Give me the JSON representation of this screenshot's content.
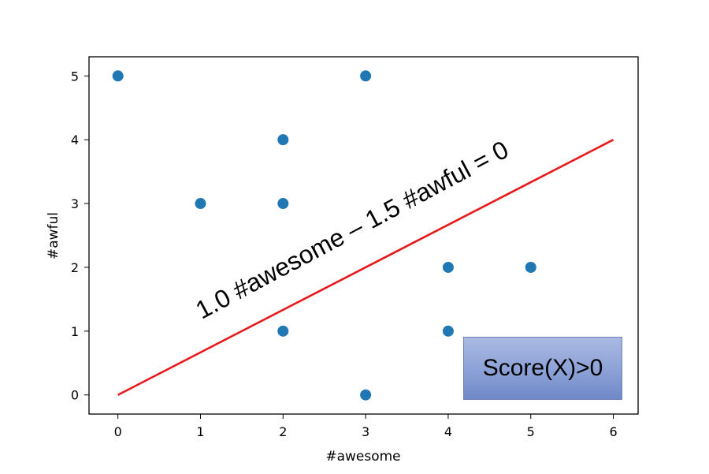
{
  "chart_data": {
    "type": "scatter",
    "xlabel": "#awesome",
    "ylabel": "#awful",
    "xlim": [
      -0.35,
      6.3
    ],
    "ylim": [
      -0.3,
      5.3
    ],
    "xticks": [
      0,
      1,
      2,
      3,
      4,
      5,
      6
    ],
    "yticks": [
      0,
      1,
      2,
      3,
      4,
      5
    ],
    "grid": false,
    "series": [
      {
        "color": "#1f77b4",
        "points": [
          {
            "x": 0,
            "y": 5
          },
          {
            "x": 3,
            "y": 5
          },
          {
            "x": 2,
            "y": 4
          },
          {
            "x": 1,
            "y": 3
          },
          {
            "x": 2,
            "y": 3
          },
          {
            "x": 4,
            "y": 2
          },
          {
            "x": 5,
            "y": 2
          },
          {
            "x": 2,
            "y": 1
          },
          {
            "x": 4,
            "y": 1
          },
          {
            "x": 3,
            "y": 0
          }
        ]
      }
    ],
    "decision_boundary": {
      "color": "#e8191b",
      "from": {
        "x": 0,
        "y": 0
      },
      "to": {
        "x": 6,
        "y": 4
      },
      "label": "1.0 #awesome – 1.5 #awful = 0"
    },
    "region_label": {
      "text": "Score(X)>0",
      "colors": [
        "#aab9e2",
        "#6f88c7"
      ]
    }
  }
}
